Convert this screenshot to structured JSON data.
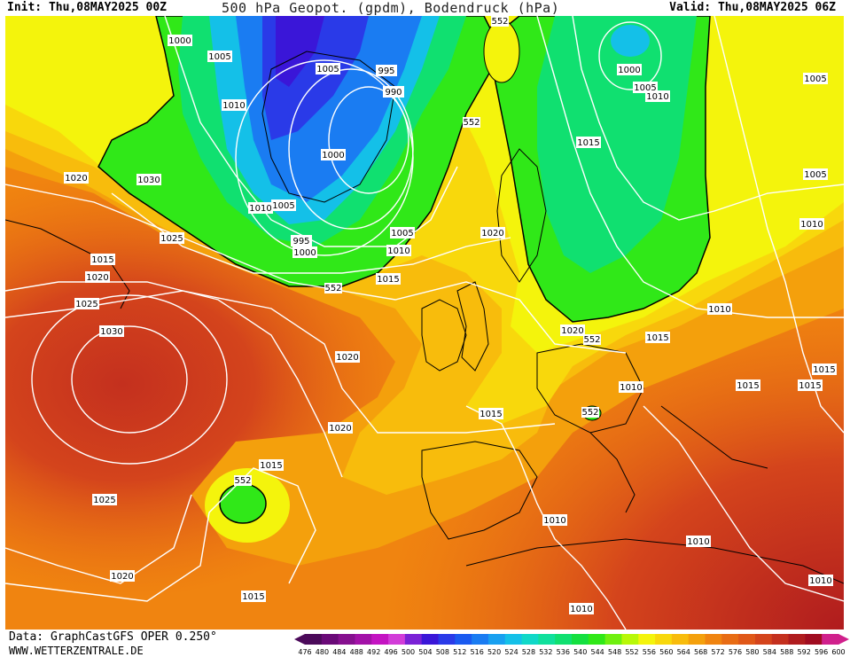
{
  "header": {
    "init": "Init: Thu,08MAY2025 00Z",
    "title": "500 hPa Geopot. (gpdm), Bodendruck (hPa)",
    "valid": "Valid: Thu,08MAY2025 06Z"
  },
  "footer": {
    "data_source": "Data: GraphCastGFS OPER 0.250°",
    "website": "WWW.WETTERZENTRALE.DE"
  },
  "isobar_labels": [
    "1000",
    "1005",
    "995",
    "1005",
    "990",
    "552",
    "1000",
    "1005",
    "1010",
    "552",
    "1010",
    "1000",
    "1005",
    "1015",
    "1020",
    "1030",
    "1025",
    "1015",
    "1020",
    "1010",
    "1005",
    "995",
    "1000",
    "1005",
    "1010",
    "1020",
    "1015",
    "552",
    "1005",
    "1010",
    "1025",
    "1030",
    "1020",
    "1020",
    "1015",
    "552",
    "1015",
    "1010",
    "1015",
    "1015",
    "1015",
    "1010",
    "552",
    "1010",
    "1025",
    "1015",
    "552",
    "1020",
    "1010",
    "1010",
    "1015",
    "1010",
    "1020"
  ],
  "geopotential_scale": {
    "values": [
      "476",
      "480",
      "484",
      "488",
      "492",
      "496",
      "500",
      "504",
      "508",
      "512",
      "516",
      "520",
      "524",
      "528",
      "532",
      "536",
      "540",
      "544",
      "548",
      "552",
      "556",
      "560",
      "564",
      "568",
      "572",
      "576",
      "580",
      "584",
      "588",
      "592",
      "596",
      "600"
    ],
    "colors": [
      "#4b0a5a",
      "#6a0a78",
      "#86108f",
      "#a312a8",
      "#c414c2",
      "#d23cd8",
      "#7a22d6",
      "#3a16d8",
      "#2a3ae8",
      "#1a5af0",
      "#1a7cf2",
      "#18a0f0",
      "#14c0e8",
      "#10d8c8",
      "#10e09c",
      "#10e070",
      "#14e040",
      "#30e818",
      "#70f010",
      "#b8f808",
      "#f4f40c",
      "#f8d80c",
      "#f8bc0c",
      "#f4a00c",
      "#f08410",
      "#e86c14",
      "#e05818",
      "#d4441c",
      "#c4301e",
      "#b01c1e",
      "#a00c20",
      "#d0208c"
    ]
  }
}
